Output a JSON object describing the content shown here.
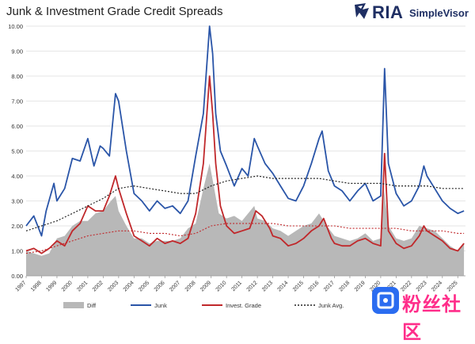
{
  "title": "Junk & Investment Grade Credit Spreads",
  "logo": {
    "brand": "RIA",
    "product": "SimpleVisor"
  },
  "watermark_text": "粉丝社区",
  "colors": {
    "diff": "#b8b8b8",
    "junk": "#2a55a8",
    "ig": "#c0282b",
    "junk_avg": "#222222",
    "ig_avg": "#c0282b",
    "grid": "#e6e6e6"
  },
  "chart_data": {
    "type": "line",
    "xlim": [
      1997,
      2025.5
    ],
    "ylim": [
      0,
      10
    ],
    "y_ticks": [
      0,
      1,
      2,
      3,
      4,
      5,
      6,
      7,
      8,
      9,
      10
    ],
    "y_tick_labels": [
      "0.00",
      "1.00",
      "2.00",
      "3.00",
      "4.00",
      "5.00",
      "6.00",
      "7.00",
      "8.00",
      "9.00",
      "10.00"
    ],
    "x_ticks": [
      1997,
      1998,
      1999,
      2000,
      2001,
      2002,
      2003,
      2004,
      2005,
      2006,
      2007,
      2008,
      2009,
      2010,
      2011,
      2012,
      2013,
      2014,
      2015,
      2016,
      2017,
      2018,
      2019,
      2020,
      2021,
      2022,
      2023,
      2024,
      2025
    ],
    "x_tick_labels": [
      "1997",
      "1998",
      "1999",
      "2000",
      "2001",
      "2002",
      "2003",
      "2004",
      "2005",
      "2006",
      "2007",
      "2008",
      "2009",
      "2010",
      "2011",
      "2012",
      "2013",
      "2014",
      "2015",
      "2016",
      "2017",
      "2018",
      "2019",
      "2020",
      "2021",
      "2022",
      "2023",
      "2024",
      "2025"
    ],
    "legend_placement": "bottom",
    "series": [
      {
        "name": "Diff",
        "type": "area",
        "x": [
          1997,
          1997.5,
          1998,
          1998.5,
          1999,
          1999.5,
          2000,
          2000.5,
          2001,
          2001.5,
          2002,
          2002.5,
          2002.8,
          2003,
          2003.5,
          2004,
          2004.5,
          2005,
          2005.5,
          2006,
          2006.5,
          2007,
          2007.5,
          2008,
          2008.5,
          2008.9,
          2009.2,
          2009.5,
          2010,
          2010.5,
          2011,
          2011.8,
          2012,
          2012.5,
          2013,
          2013.5,
          2014,
          2014.5,
          2015,
          2015.5,
          2016,
          2016.5,
          2017,
          2017.5,
          2018,
          2018.5,
          2019,
          2019.5,
          2020,
          2020.2,
          2020.5,
          2021,
          2021.5,
          2022,
          2022.5,
          2023,
          2023.5,
          2024,
          2024.5,
          2025,
          2025.4
        ],
        "y": [
          1.0,
          0.9,
          0.8,
          0.9,
          1.5,
          1.6,
          2.0,
          2.2,
          2.2,
          2.5,
          2.6,
          3.0,
          3.2,
          2.6,
          2.0,
          1.5,
          1.5,
          1.3,
          1.4,
          1.4,
          1.4,
          1.5,
          1.9,
          2.1,
          3.5,
          4.5,
          3.5,
          2.5,
          2.3,
          2.4,
          2.2,
          2.8,
          2.3,
          2.2,
          1.9,
          1.8,
          1.6,
          1.8,
          2.0,
          2.1,
          2.5,
          2.0,
          1.6,
          1.5,
          1.4,
          1.5,
          1.7,
          1.4,
          1.5,
          3.5,
          2.0,
          1.5,
          1.4,
          1.5,
          2.0,
          1.9,
          1.8,
          1.5,
          1.2,
          1.0,
          1.3
        ]
      },
      {
        "name": "Junk",
        "type": "line",
        "x": [
          1997,
          1997.5,
          1998,
          1998.3,
          1998.8,
          1999,
          1999.5,
          2000,
          2000.5,
          2001,
          2001.4,
          2001.8,
          2002,
          2002.4,
          2002.8,
          2003,
          2003.5,
          2004,
          2004.5,
          2005,
          2005.5,
          2006,
          2006.5,
          2007,
          2007.5,
          2008,
          2008.5,
          2008.9,
          2009.1,
          2009.3,
          2009.6,
          2010,
          2010.5,
          2011,
          2011.4,
          2011.8,
          2012,
          2012.5,
          2013,
          2013.5,
          2014,
          2014.5,
          2015,
          2015.5,
          2016,
          2016.2,
          2016.6,
          2017,
          2017.5,
          2018,
          2018.5,
          2019,
          2019.5,
          2020,
          2020.25,
          2020.5,
          2021,
          2021.5,
          2022,
          2022.5,
          2022.8,
          2023,
          2023.5,
          2024,
          2024.5,
          2025,
          2025.4
        ],
        "y": [
          2.0,
          2.4,
          1.6,
          2.6,
          3.7,
          3.0,
          3.5,
          4.7,
          4.6,
          5.5,
          4.4,
          5.2,
          5.1,
          4.8,
          7.3,
          7.0,
          5.0,
          3.3,
          3.0,
          2.6,
          3.0,
          2.7,
          2.8,
          2.5,
          3.0,
          4.8,
          6.5,
          10.0,
          8.9,
          6.5,
          5.0,
          4.4,
          3.6,
          4.3,
          4.0,
          5.5,
          5.2,
          4.5,
          4.1,
          3.6,
          3.1,
          3.0,
          3.6,
          4.5,
          5.5,
          5.8,
          4.2,
          3.6,
          3.4,
          3.0,
          3.4,
          3.7,
          3.0,
          3.2,
          8.3,
          4.5,
          3.3,
          2.8,
          3.0,
          3.6,
          4.4,
          4.0,
          3.5,
          3.0,
          2.7,
          2.5,
          2.6
        ]
      },
      {
        "name": "Invest. Grade",
        "type": "line",
        "x": [
          1997,
          1997.5,
          1998,
          1998.5,
          1999,
          1999.5,
          2000,
          2000.5,
          2001,
          2001.5,
          2002,
          2002.4,
          2002.8,
          2003,
          2003.5,
          2004,
          2004.5,
          2005,
          2005.5,
          2006,
          2006.5,
          2007,
          2007.5,
          2008,
          2008.5,
          2008.9,
          2009.1,
          2009.3,
          2009.6,
          2010,
          2010.5,
          2011,
          2011.5,
          2011.9,
          2012.3,
          2012.8,
          2013,
          2013.5,
          2014,
          2014.5,
          2015,
          2015.5,
          2016,
          2016.3,
          2016.8,
          2017,
          2017.5,
          2018,
          2018.5,
          2019,
          2019.5,
          2020,
          2020.25,
          2020.5,
          2021,
          2021.5,
          2022,
          2022.5,
          2022.8,
          2023,
          2023.5,
          2024,
          2024.5,
          2025,
          2025.4
        ],
        "y": [
          1.0,
          1.1,
          0.9,
          1.1,
          1.4,
          1.2,
          1.8,
          2.1,
          2.8,
          2.6,
          2.6,
          3.2,
          4.0,
          3.5,
          2.5,
          1.6,
          1.4,
          1.2,
          1.5,
          1.3,
          1.4,
          1.3,
          1.5,
          2.5,
          4.5,
          8.0,
          6.5,
          4.5,
          2.8,
          2.0,
          1.7,
          1.8,
          1.9,
          2.6,
          2.4,
          1.9,
          1.6,
          1.5,
          1.2,
          1.3,
          1.5,
          1.8,
          2.0,
          2.3,
          1.5,
          1.3,
          1.2,
          1.2,
          1.4,
          1.5,
          1.3,
          1.2,
          4.9,
          1.8,
          1.3,
          1.1,
          1.2,
          1.6,
          2.0,
          1.8,
          1.6,
          1.4,
          1.1,
          1.0,
          1.3
        ]
      },
      {
        "name": "Junk Avg.",
        "type": "line",
        "dashed": true,
        "x": [
          1997,
          1998,
          1999,
          2000,
          2001,
          2002,
          2003,
          2004,
          2005,
          2006,
          2007,
          2008,
          2009,
          2010,
          2011,
          2012,
          2013,
          2014,
          2015,
          2016,
          2017,
          2018,
          2019,
          2020,
          2021,
          2022,
          2023,
          2024,
          2025,
          2025.4
        ],
        "y": [
          1.8,
          2.0,
          2.2,
          2.5,
          2.8,
          3.1,
          3.5,
          3.6,
          3.5,
          3.4,
          3.3,
          3.3,
          3.6,
          3.8,
          3.9,
          4.0,
          3.9,
          3.9,
          3.9,
          3.9,
          3.8,
          3.7,
          3.7,
          3.7,
          3.6,
          3.6,
          3.6,
          3.5,
          3.5,
          3.5
        ]
      },
      {
        "name": "IG Avg",
        "type": "line",
        "dashed": true,
        "show_in_legend": false,
        "x": [
          1997,
          1998,
          1999,
          2000,
          2001,
          2002,
          2003,
          2004,
          2005,
          2006,
          2007,
          2008,
          2009,
          2010,
          2011,
          2012,
          2013,
          2014,
          2015,
          2016,
          2017,
          2018,
          2019,
          2020,
          2021,
          2022,
          2023,
          2024,
          2025,
          2025.4
        ],
        "y": [
          0.9,
          1.0,
          1.2,
          1.4,
          1.6,
          1.7,
          1.8,
          1.8,
          1.7,
          1.7,
          1.6,
          1.7,
          2.0,
          2.1,
          2.1,
          2.1,
          2.1,
          2.0,
          2.0,
          2.0,
          2.0,
          1.9,
          1.9,
          1.9,
          1.9,
          1.8,
          1.8,
          1.8,
          1.7,
          1.7
        ]
      }
    ]
  }
}
